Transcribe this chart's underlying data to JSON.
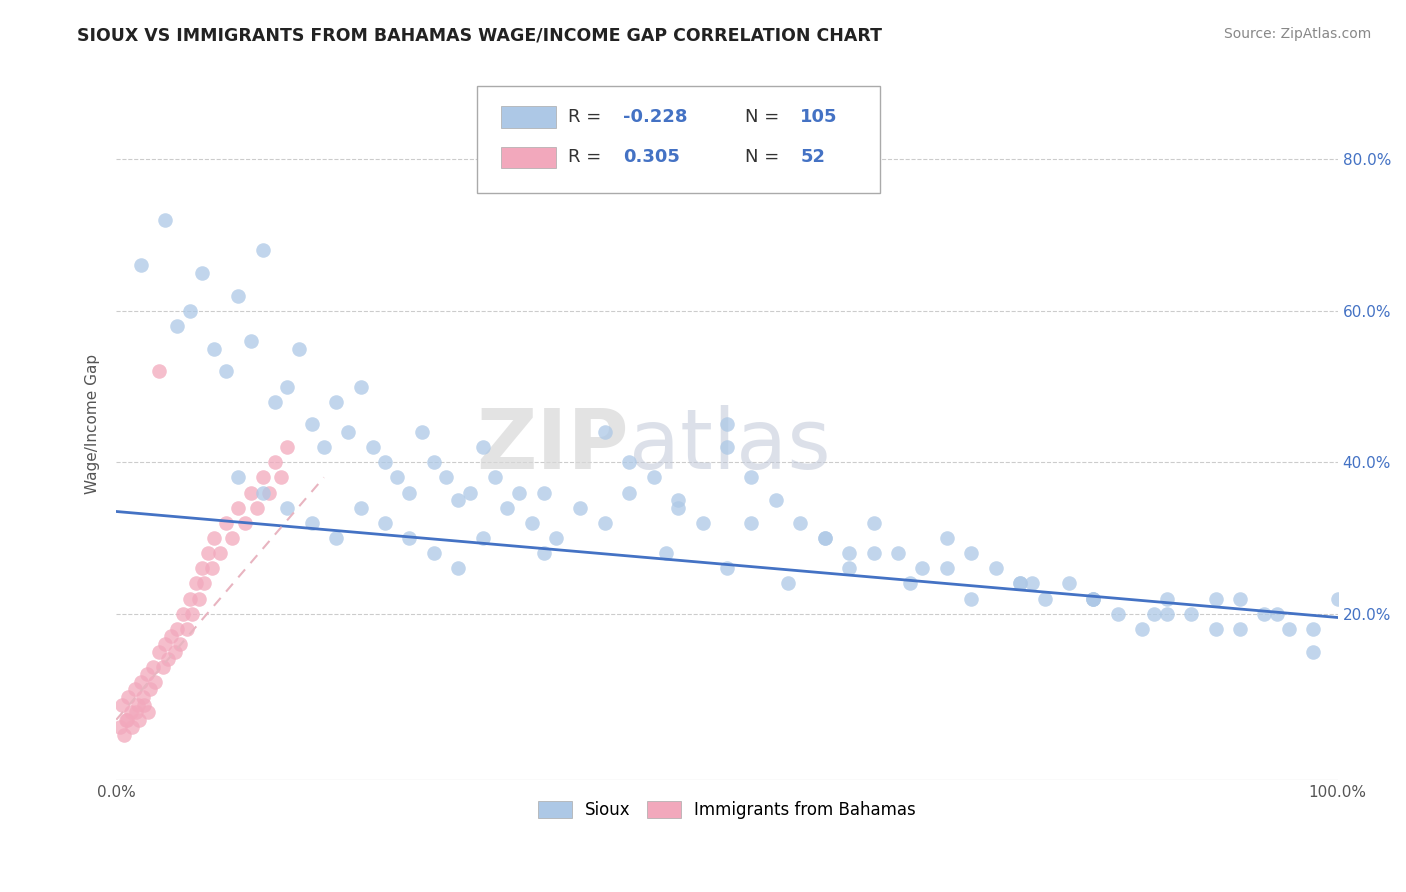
{
  "title": "SIOUX VS IMMIGRANTS FROM BAHAMAS WAGE/INCOME GAP CORRELATION CHART",
  "source": "Source: ZipAtlas.com",
  "ylabel": "Wage/Income Gap",
  "xlim": [
    0,
    1
  ],
  "ylim": [
    -0.02,
    0.92
  ],
  "x_tick_labels_ends": [
    "0.0%",
    "100.0%"
  ],
  "x_tick_vals_ends": [
    0.0,
    1.0
  ],
  "y_tick_labels": [
    "20.0%",
    "40.0%",
    "60.0%",
    "80.0%"
  ],
  "y_tick_vals": [
    0.2,
    0.4,
    0.6,
    0.8
  ],
  "blue_color": "#adc8e6",
  "pink_color": "#f2a8bc",
  "trendline_blue": "#4472c4",
  "trendline_pink": "#e8b4c0",
  "watermark_zip": "ZIP",
  "watermark_atlas": "atlas",
  "blue_scatter_x": [
    0.02,
    0.04,
    0.05,
    0.06,
    0.07,
    0.08,
    0.09,
    0.1,
    0.11,
    0.12,
    0.13,
    0.14,
    0.15,
    0.16,
    0.17,
    0.18,
    0.19,
    0.2,
    0.21,
    0.22,
    0.23,
    0.24,
    0.25,
    0.26,
    0.27,
    0.28,
    0.29,
    0.3,
    0.31,
    0.32,
    0.33,
    0.34,
    0.35,
    0.36,
    0.38,
    0.4,
    0.42,
    0.44,
    0.46,
    0.48,
    0.5,
    0.5,
    0.52,
    0.54,
    0.56,
    0.58,
    0.6,
    0.62,
    0.64,
    0.66,
    0.68,
    0.7,
    0.72,
    0.74,
    0.76,
    0.78,
    0.8,
    0.82,
    0.84,
    0.86,
    0.88,
    0.9,
    0.92,
    0.94,
    0.96,
    0.98,
    1.0,
    0.1,
    0.12,
    0.14,
    0.16,
    0.18,
    0.2,
    0.22,
    0.24,
    0.26,
    0.28,
    0.3,
    0.35,
    0.4,
    0.45,
    0.5,
    0.55,
    0.6,
    0.65,
    0.7,
    0.75,
    0.8,
    0.85,
    0.9,
    0.95,
    0.98,
    0.42,
    0.46,
    0.52,
    0.58,
    0.62,
    0.68,
    0.74,
    0.8,
    0.86,
    0.92
  ],
  "blue_scatter_y": [
    0.66,
    0.72,
    0.58,
    0.6,
    0.65,
    0.55,
    0.52,
    0.62,
    0.56,
    0.68,
    0.48,
    0.5,
    0.55,
    0.45,
    0.42,
    0.48,
    0.44,
    0.5,
    0.42,
    0.4,
    0.38,
    0.36,
    0.44,
    0.4,
    0.38,
    0.35,
    0.36,
    0.42,
    0.38,
    0.34,
    0.36,
    0.32,
    0.36,
    0.3,
    0.34,
    0.44,
    0.4,
    0.38,
    0.35,
    0.32,
    0.45,
    0.42,
    0.38,
    0.35,
    0.32,
    0.3,
    0.28,
    0.32,
    0.28,
    0.26,
    0.3,
    0.28,
    0.26,
    0.24,
    0.22,
    0.24,
    0.22,
    0.2,
    0.18,
    0.22,
    0.2,
    0.18,
    0.22,
    0.2,
    0.18,
    0.15,
    0.22,
    0.38,
    0.36,
    0.34,
    0.32,
    0.3,
    0.34,
    0.32,
    0.3,
    0.28,
    0.26,
    0.3,
    0.28,
    0.32,
    0.28,
    0.26,
    0.24,
    0.26,
    0.24,
    0.22,
    0.24,
    0.22,
    0.2,
    0.22,
    0.2,
    0.18,
    0.36,
    0.34,
    0.32,
    0.3,
    0.28,
    0.26,
    0.24,
    0.22,
    0.2,
    0.18
  ],
  "pink_scatter_x": [
    0.005,
    0.008,
    0.01,
    0.012,
    0.015,
    0.018,
    0.02,
    0.022,
    0.025,
    0.028,
    0.03,
    0.032,
    0.035,
    0.038,
    0.04,
    0.042,
    0.045,
    0.048,
    0.05,
    0.052,
    0.055,
    0.058,
    0.06,
    0.062,
    0.065,
    0.068,
    0.07,
    0.072,
    0.075,
    0.078,
    0.08,
    0.085,
    0.09,
    0.095,
    0.1,
    0.105,
    0.11,
    0.115,
    0.12,
    0.125,
    0.13,
    0.135,
    0.14,
    0.003,
    0.006,
    0.009,
    0.013,
    0.016,
    0.019,
    0.023,
    0.026,
    0.035
  ],
  "pink_scatter_y": [
    0.08,
    0.06,
    0.09,
    0.07,
    0.1,
    0.08,
    0.11,
    0.09,
    0.12,
    0.1,
    0.13,
    0.11,
    0.15,
    0.13,
    0.16,
    0.14,
    0.17,
    0.15,
    0.18,
    0.16,
    0.2,
    0.18,
    0.22,
    0.2,
    0.24,
    0.22,
    0.26,
    0.24,
    0.28,
    0.26,
    0.3,
    0.28,
    0.32,
    0.3,
    0.34,
    0.32,
    0.36,
    0.34,
    0.38,
    0.36,
    0.4,
    0.38,
    0.42,
    0.05,
    0.04,
    0.06,
    0.05,
    0.07,
    0.06,
    0.08,
    0.07,
    0.52
  ],
  "blue_trend_x0": 0.0,
  "blue_trend_y0": 0.335,
  "blue_trend_x1": 1.0,
  "blue_trend_y1": 0.195,
  "pink_trend_x0": 0.0,
  "pink_trend_y0": 0.06,
  "pink_trend_x1": 0.17,
  "pink_trend_y1": 0.38
}
